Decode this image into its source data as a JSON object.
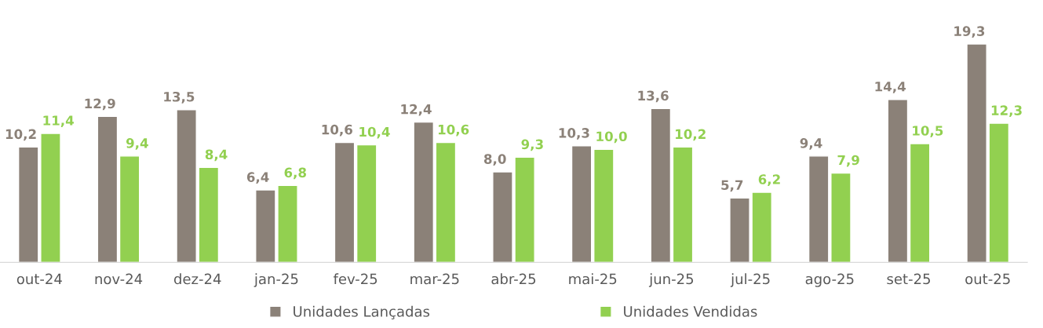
{
  "chart_data": {
    "type": "bar",
    "categories": [
      "out-24",
      "nov-24",
      "dez-24",
      "jan-25",
      "fev-25",
      "mar-25",
      "abr-25",
      "mai-25",
      "jun-25",
      "jul-25",
      "ago-25",
      "set-25",
      "out-25"
    ],
    "series": [
      {
        "name": "Unidades Lançadas",
        "color": "#8b8178",
        "values": [
          10.2,
          12.9,
          13.5,
          6.4,
          10.6,
          12.4,
          8.0,
          10.3,
          13.6,
          5.7,
          9.4,
          14.4,
          19.3
        ],
        "value_labels": [
          "10,2",
          "12,9",
          "13,5",
          "6,4",
          "10,6",
          "12,4",
          "8,0",
          "10,3",
          "13,6",
          "5,7",
          "9,4",
          "14,4",
          "19,3"
        ]
      },
      {
        "name": "Unidades Vendidas",
        "color": "#92d050",
        "values": [
          11.4,
          9.4,
          8.4,
          6.8,
          10.4,
          10.6,
          9.3,
          10.0,
          10.2,
          6.2,
          7.9,
          10.5,
          12.3
        ],
        "value_labels": [
          "11,4",
          "9,4",
          "8,4",
          "6,8",
          "10,4",
          "10,6",
          "9,3",
          "10,0",
          "10,2",
          "6,2",
          "7,9",
          "10,5",
          "12,3"
        ]
      }
    ],
    "tick_labels": "x",
    "legend": "bottom",
    "grid": false
  }
}
